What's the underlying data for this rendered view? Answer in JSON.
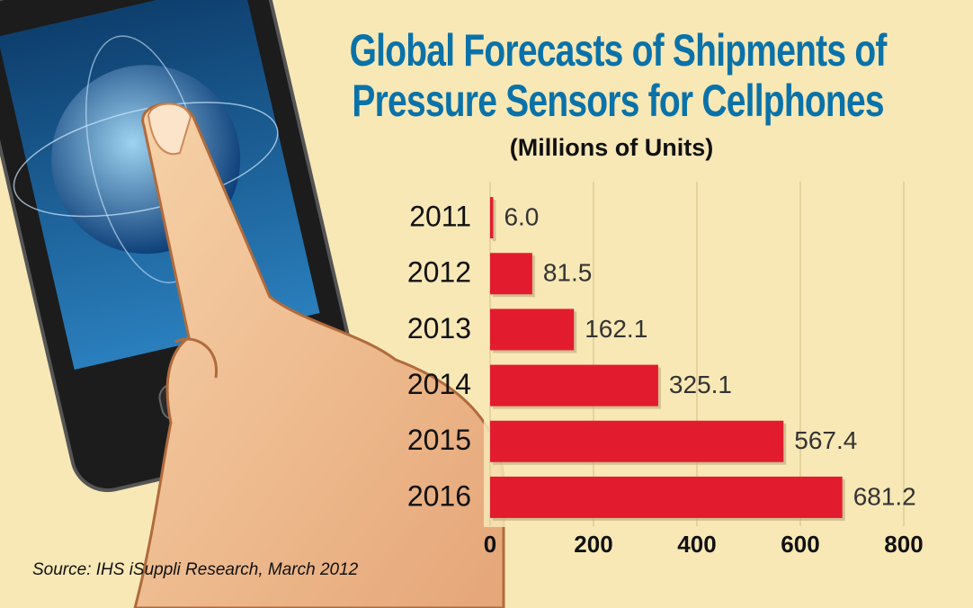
{
  "chart_data": {
    "type": "bar",
    "orientation": "horizontal",
    "title": "Global Forecasts of Shipments of Pressure Sensors for Cellphones",
    "subtitle": "(Millions of Units)",
    "categories": [
      "2011",
      "2012",
      "2013",
      "2014",
      "2015",
      "2016"
    ],
    "values": [
      6.0,
      81.5,
      162.1,
      325.1,
      567.4,
      681.2
    ],
    "value_labels": [
      "6.0",
      "81.5",
      "162.1",
      "325.1",
      "567.4",
      "681.2"
    ],
    "color": "#e31b2f",
    "xlim": [
      0,
      800
    ],
    "xticks": [
      0,
      200,
      400,
      600,
      800
    ],
    "grid": true,
    "source": "Source: IHS iSuppli Research, March 2012"
  }
}
